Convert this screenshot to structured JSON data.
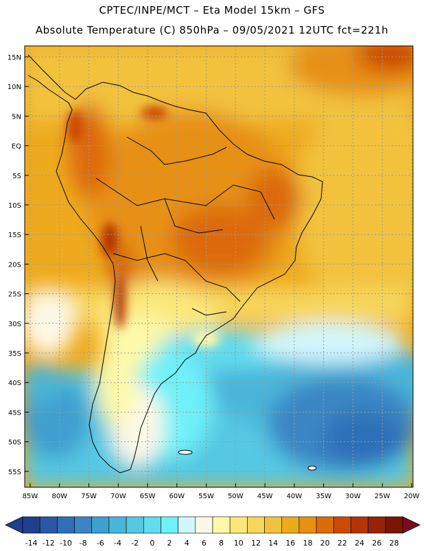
{
  "title_line1": "CPTEC/INPE/MCT –  Eta Model 15km – GFS",
  "title_line2": "Absolute Temperature (C) 850hPa – 09/05/2021 12UTC fct=221h",
  "lat_labels": [
    "15N",
    "10N",
    "5N",
    "EQ",
    "5S",
    "10S",
    "15S",
    "20S",
    "25S",
    "30S",
    "35S",
    "40S",
    "45S",
    "50S",
    "55S"
  ],
  "lon_labels": [
    "85W",
    "80W",
    "75W",
    "70W",
    "65W",
    "60W",
    "55W",
    "50W",
    "45W",
    "40W",
    "35W",
    "30W",
    "25W",
    "20W"
  ],
  "colorbar": {
    "labels": [
      "-14",
      "-12",
      "-10",
      "-8",
      "-6",
      "-4",
      "-2",
      "0",
      "2",
      "4",
      "6",
      "8",
      "10",
      "12",
      "14",
      "16",
      "18",
      "20",
      "22",
      "24",
      "26",
      "28"
    ],
    "colors": [
      "#1f3f8f",
      "#2a57a8",
      "#2e6fb8",
      "#3a86c4",
      "#3f9fcf",
      "#49b5d9",
      "#55c8e3",
      "#62dcee",
      "#70f0f8",
      "#d2f6fc",
      "#fdf8e6",
      "#fef9a8",
      "#fbe77a",
      "#f7d65c",
      "#f2c23e",
      "#eeaa1e",
      "#e79012",
      "#dc6b08",
      "#cc4a06",
      "#b43405",
      "#962304",
      "#7a1503"
    ]
  }
}
